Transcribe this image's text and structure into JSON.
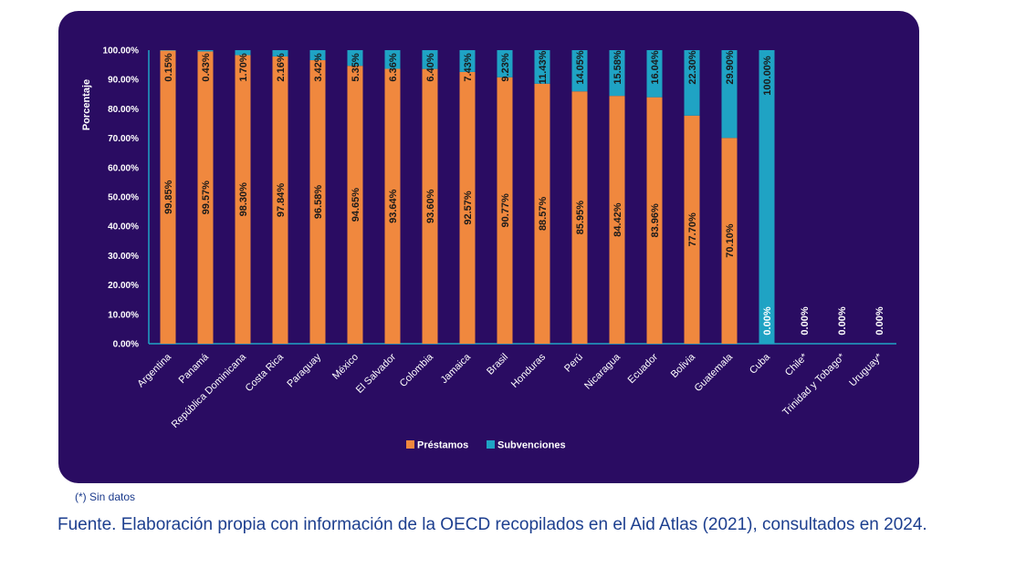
{
  "chart_data": {
    "type": "bar",
    "stacked": true,
    "ylabel": "Porcentaje",
    "ylim": [
      0,
      100
    ],
    "yticks": [
      "0.00%",
      "10.00%",
      "20.00%",
      "30.00%",
      "40.00%",
      "50.00%",
      "60.00%",
      "70.00%",
      "80.00%",
      "90.00%",
      "100.00%"
    ],
    "categories": [
      "Argentina",
      "Panamá",
      "República Dominicana",
      "Costa Rica",
      "Paraguay",
      "México",
      "El Salvador",
      "Colombia",
      "Jamaica",
      "Brasil",
      "Honduras",
      "Perú",
      "Nicaragua",
      "Ecuador",
      "Bolivia",
      "Guatemala",
      "Cuba",
      "Chile*",
      "Trinidad y Tobago*",
      "Uruguay*"
    ],
    "series": [
      {
        "name": "Préstamos",
        "color": "#f0883e",
        "values": [
          99.85,
          99.57,
          98.3,
          97.84,
          96.58,
          94.65,
          93.64,
          93.6,
          92.57,
          90.77,
          88.57,
          85.95,
          84.42,
          83.96,
          77.7,
          70.1,
          0,
          0,
          0,
          0
        ],
        "labels": [
          "99.85%",
          "99.57%",
          "98.30%",
          "97.84%",
          "96.58%",
          "94.65%",
          "93.64%",
          "93.60%",
          "92.57%",
          "90.77%",
          "88.57%",
          "85.95%",
          "84.42%",
          "83.96%",
          "77.70%",
          "70.10%",
          "0.00%",
          "0.00%",
          "0.00%",
          "0.00%"
        ]
      },
      {
        "name": "Subvenciones",
        "color": "#1fa3c4",
        "values": [
          0.15,
          0.43,
          1.7,
          2.16,
          3.42,
          5.35,
          6.36,
          6.4,
          7.43,
          9.23,
          11.43,
          14.05,
          15.58,
          16.04,
          22.3,
          29.9,
          100.0,
          0,
          0,
          0
        ],
        "labels": [
          "0.15%",
          "0.43%",
          "1.70%",
          "2.16%",
          "3.42%",
          "5.35%",
          "6.36%",
          "6.40%",
          "7.43%",
          "9.23%",
          "11.43%",
          "14.05%",
          "15.58%",
          "16.04%",
          "22.30%",
          "29.90%",
          "100.00%",
          "",
          "",
          ""
        ]
      }
    ],
    "legend": "bottom-center",
    "grid": false
  },
  "note": "(*) Sin datos",
  "source": "Fuente. Elaboración propia con información de la OECD recopilados en el Aid Atlas (2021), consultados en 2024."
}
